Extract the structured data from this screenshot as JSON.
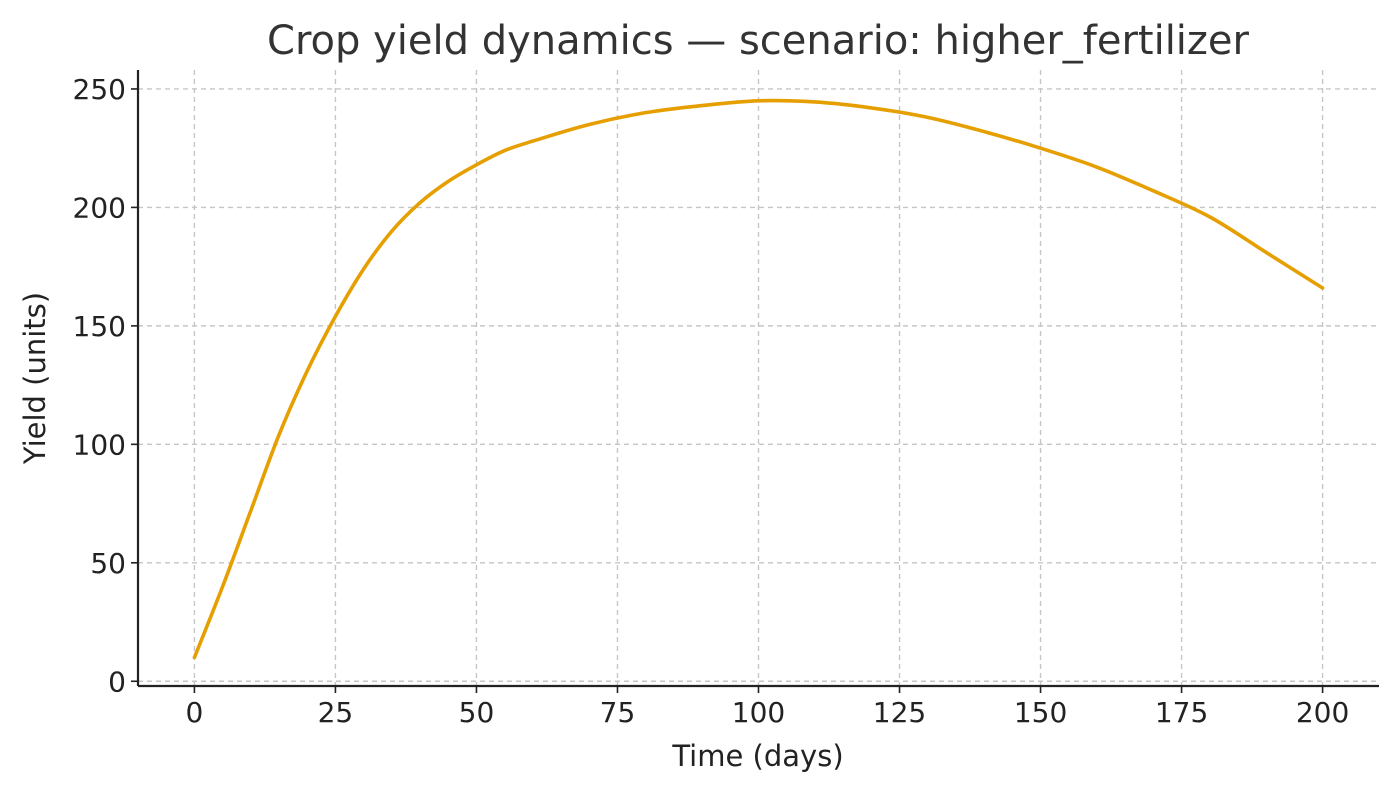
{
  "chart_data": {
    "type": "line",
    "title": "Crop yield dynamics — scenario: higher_fertilizer",
    "xlabel": "Time (days)",
    "ylabel": "Yield (units)",
    "xlim": [
      -10,
      210
    ],
    "ylim": [
      -2,
      258
    ],
    "xticks": [
      0,
      25,
      50,
      75,
      100,
      125,
      150,
      175,
      200
    ],
    "yticks": [
      0,
      50,
      100,
      150,
      200,
      250
    ],
    "grid": true,
    "legend": "none",
    "series": [
      {
        "color": "#E69F00",
        "x": [
          0,
          5,
          10,
          15,
          20,
          25,
          30,
          35,
          40,
          45,
          50,
          55,
          60,
          70,
          80,
          90,
          100,
          110,
          120,
          130,
          140,
          150,
          160,
          170,
          180,
          190,
          200
        ],
        "y": [
          10,
          40,
          72,
          104,
          131,
          154,
          174,
          190,
          202,
          211,
          218,
          224,
          228,
          235,
          240,
          243,
          245,
          244.5,
          242,
          238,
          232,
          225,
          217,
          207,
          196,
          181,
          166
        ]
      }
    ]
  }
}
